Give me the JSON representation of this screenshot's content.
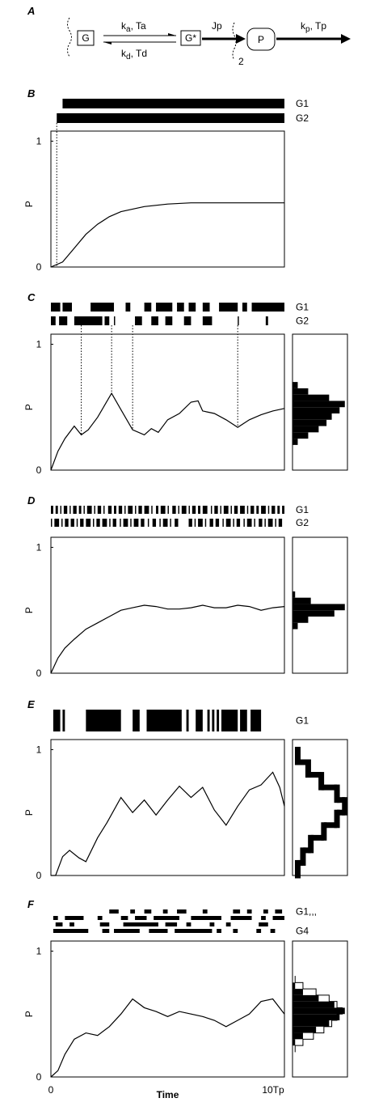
{
  "diagram": {
    "label": "A",
    "gene": "G",
    "active_gene": "G*",
    "product": "P",
    "flux": "Jp",
    "copies": "2",
    "activation": {
      "symbol": "k",
      "sub": "a",
      "time": ", Ta"
    },
    "deactivation": {
      "symbol": "k",
      "sub": "d",
      "time": ", Td"
    },
    "decay": {
      "symbol": "k",
      "sub": "p",
      "time": ", Tp"
    }
  },
  "chart_data": [
    {
      "type": "line",
      "panel_label": "B",
      "color": "#000000",
      "ylabel": "P",
      "xlim": [
        0,
        10
      ],
      "ylim": [
        0,
        1.08
      ],
      "yticks": [
        0,
        1
      ],
      "x": [
        0,
        0.5,
        1,
        1.5,
        2,
        2.5,
        3,
        4,
        5,
        6,
        7,
        8,
        9,
        10
      ],
      "values": [
        0,
        0.04,
        0.15,
        0.26,
        0.34,
        0.4,
        0.44,
        0.48,
        0.5,
        0.51,
        0.51,
        0.51,
        0.51,
        0.51
      ],
      "event_lines": [
        0.25
      ],
      "genes": [
        {
          "name": "G1",
          "intervals": [
            [
              0.5,
              10
            ]
          ]
        },
        {
          "name": "G2",
          "intervals": [
            [
              0.25,
              10
            ]
          ]
        }
      ]
    },
    {
      "type": "line",
      "panel_label": "C",
      "color": "#000000",
      "ylabel": "P",
      "xlim": [
        0,
        10
      ],
      "ylim": [
        0,
        1.08
      ],
      "yticks": [
        0,
        1
      ],
      "x": [
        0,
        0.3,
        0.6,
        1.0,
        1.3,
        1.6,
        2.0,
        2.6,
        3.0,
        3.5,
        4.0,
        4.3,
        4.6,
        5.0,
        5.5,
        6.0,
        6.3,
        6.5,
        7.0,
        7.5,
        8.0,
        8.5,
        9.0,
        9.5,
        10
      ],
      "values": [
        0,
        0.15,
        0.25,
        0.35,
        0.28,
        0.32,
        0.42,
        0.61,
        0.48,
        0.32,
        0.28,
        0.33,
        0.3,
        0.4,
        0.45,
        0.54,
        0.55,
        0.47,
        0.45,
        0.4,
        0.34,
        0.4,
        0.44,
        0.47,
        0.49
      ],
      "event_lines": [
        1.3,
        2.6,
        3.5,
        8.0
      ],
      "genes": [
        {
          "name": "G1",
          "intervals": [
            [
              0,
              0.4
            ],
            [
              0.5,
              0.9
            ],
            [
              1.7,
              2.7
            ],
            [
              3.2,
              3.4
            ],
            [
              4.0,
              4.3
            ],
            [
              4.5,
              5.2
            ],
            [
              5.4,
              5.7
            ],
            [
              5.9,
              6.2
            ],
            [
              6.5,
              6.8
            ],
            [
              7.2,
              8.0
            ],
            [
              8.2,
              8.4
            ],
            [
              8.6,
              10
            ]
          ]
        },
        {
          "name": "G2",
          "intervals": [
            [
              0,
              0.2
            ],
            [
              0.35,
              0.7
            ],
            [
              1.0,
              2.2
            ],
            [
              2.3,
              2.5
            ],
            [
              2.7,
              2.75
            ],
            [
              3.6,
              3.9
            ],
            [
              4.3,
              4.6
            ],
            [
              4.9,
              5.2
            ],
            [
              5.7,
              6.0
            ],
            [
              6.5,
              6.9
            ],
            [
              8.0,
              8.05
            ],
            [
              9.2,
              9.3
            ]
          ]
        }
      ],
      "histogram": {
        "xlim": [
          0,
          1.05
        ],
        "bins": [
          0.2,
          0.25,
          0.3,
          0.35,
          0.4,
          0.45,
          0.5,
          0.55,
          0.6,
          0.65,
          0.7
        ],
        "series": [
          {
            "style": "filled",
            "color": "#000000",
            "values": [
              0.1,
              0.3,
              0.5,
              0.65,
              0.75,
              0.9,
              1,
              0.7,
              0.3,
              0.1
            ]
          }
        ]
      }
    },
    {
      "type": "line",
      "panel_label": "D",
      "color": "#000000",
      "ylabel": "P",
      "xlim": [
        0,
        10
      ],
      "ylim": [
        0,
        1.08
      ],
      "yticks": [
        0,
        1
      ],
      "x": [
        0,
        0.3,
        0.6,
        1,
        1.5,
        2,
        2.5,
        3,
        3.5,
        4,
        4.5,
        5,
        5.5,
        6,
        6.5,
        7,
        7.5,
        8,
        8.5,
        9,
        9.5,
        10
      ],
      "values": [
        0,
        0.12,
        0.2,
        0.27,
        0.35,
        0.4,
        0.45,
        0.5,
        0.52,
        0.54,
        0.53,
        0.51,
        0.51,
        0.52,
        0.54,
        0.52,
        0.52,
        0.54,
        0.53,
        0.5,
        0.52,
        0.53
      ],
      "genes": [
        {
          "name": "G1",
          "intervals": [
            [
              0,
              0.1
            ],
            [
              0.2,
              0.3
            ],
            [
              0.4,
              0.45
            ],
            [
              0.55,
              0.7
            ],
            [
              0.8,
              0.85
            ],
            [
              0.95,
              1.1
            ],
            [
              1.2,
              1.3
            ],
            [
              1.4,
              1.45
            ],
            [
              1.55,
              1.75
            ],
            [
              1.85,
              1.9
            ],
            [
              2.0,
              2.15
            ],
            [
              2.25,
              2.3
            ],
            [
              2.45,
              2.6
            ],
            [
              2.7,
              2.8
            ],
            [
              2.9,
              3.05
            ],
            [
              3.15,
              3.2
            ],
            [
              3.3,
              3.5
            ],
            [
              3.6,
              3.65
            ],
            [
              3.75,
              3.9
            ],
            [
              4.0,
              4.2
            ],
            [
              4.3,
              4.35
            ],
            [
              4.5,
              4.6
            ],
            [
              4.7,
              4.9
            ],
            [
              5.0,
              5.05
            ],
            [
              5.2,
              5.35
            ],
            [
              5.45,
              5.5
            ],
            [
              5.6,
              5.8
            ],
            [
              5.9,
              5.95
            ],
            [
              6.05,
              6.2
            ],
            [
              6.3,
              6.4
            ],
            [
              6.5,
              6.7
            ],
            [
              6.85,
              6.9
            ],
            [
              7.0,
              7.15
            ],
            [
              7.25,
              7.3
            ],
            [
              7.4,
              7.6
            ],
            [
              7.7,
              7.75
            ],
            [
              7.85,
              8.0
            ],
            [
              8.1,
              8.3
            ],
            [
              8.4,
              8.45
            ],
            [
              8.55,
              8.7
            ],
            [
              8.8,
              8.9
            ],
            [
              9.0,
              9.2
            ],
            [
              9.3,
              9.35
            ],
            [
              9.45,
              9.6
            ],
            [
              9.7,
              9.8
            ],
            [
              9.9,
              10
            ]
          ]
        },
        {
          "name": "G2",
          "intervals": [
            [
              0,
              0.05
            ],
            [
              0.15,
              0.35
            ],
            [
              0.45,
              0.5
            ],
            [
              0.6,
              0.75
            ],
            [
              0.85,
              1.0
            ],
            [
              1.1,
              1.15
            ],
            [
              1.25,
              1.4
            ],
            [
              1.5,
              1.7
            ],
            [
              1.8,
              1.85
            ],
            [
              1.95,
              2.1
            ],
            [
              2.2,
              2.4
            ],
            [
              2.5,
              2.55
            ],
            [
              2.65,
              2.8
            ],
            [
              2.95,
              3.0
            ],
            [
              3.1,
              3.3
            ],
            [
              3.4,
              3.45
            ],
            [
              3.55,
              3.75
            ],
            [
              3.85,
              4.0
            ],
            [
              4.15,
              4.2
            ],
            [
              4.35,
              4.5
            ],
            [
              4.65,
              4.7
            ],
            [
              4.8,
              5.0
            ],
            [
              5.1,
              5.15
            ],
            [
              5.3,
              5.45
            ],
            [
              5.9,
              6.05
            ],
            [
              6.15,
              6.2
            ],
            [
              6.3,
              6.5
            ],
            [
              6.6,
              6.65
            ],
            [
              6.8,
              6.95
            ],
            [
              7.05,
              7.2
            ],
            [
              7.35,
              7.4
            ],
            [
              7.5,
              7.7
            ],
            [
              7.8,
              7.85
            ],
            [
              7.95,
              8.1
            ],
            [
              8.25,
              8.3
            ],
            [
              8.4,
              8.6
            ],
            [
              8.7,
              8.75
            ],
            [
              8.9,
              9.05
            ],
            [
              9.15,
              9.2
            ],
            [
              9.3,
              9.5
            ],
            [
              9.6,
              9.65
            ],
            [
              9.75,
              9.9
            ]
          ]
        }
      ],
      "histogram": {
        "xlim": [
          0,
          1.05
        ],
        "bins": [
          0.35,
          0.4,
          0.45,
          0.5,
          0.55,
          0.6,
          0.65
        ],
        "series": [
          {
            "style": "filled",
            "color": "#000000",
            "values": [
              0.1,
              0.3,
              0.8,
              1.0,
              0.35,
              0.05
            ]
          }
        ]
      }
    },
    {
      "type": "line",
      "panel_label": "E",
      "color": "#000000",
      "ylabel": "P",
      "xlim": [
        0,
        10
      ],
      "ylim": [
        0,
        1.08
      ],
      "yticks": [
        0,
        1
      ],
      "x": [
        0,
        0.2,
        0.5,
        0.8,
        1.2,
        1.5,
        2.0,
        2.4,
        3.0,
        3.5,
        4.0,
        4.5,
        5.0,
        5.5,
        6.0,
        6.5,
        7.0,
        7.5,
        8.0,
        8.5,
        9.0,
        9.5,
        9.8,
        10
      ],
      "values": [
        0,
        0,
        0.15,
        0.2,
        0.14,
        0.11,
        0.3,
        0.42,
        0.62,
        0.5,
        0.6,
        0.48,
        0.6,
        0.71,
        0.62,
        0.7,
        0.52,
        0.4,
        0.55,
        0.68,
        0.72,
        0.82,
        0.7,
        0.55
      ],
      "genes": [
        {
          "name": "G1",
          "intervals": [
            [
              0.1,
              0.4
            ],
            [
              0.5,
              0.6
            ],
            [
              1.5,
              3.0
            ],
            [
              3.5,
              3.8
            ],
            [
              4.1,
              5.6
            ],
            [
              5.8,
              5.9
            ],
            [
              6.2,
              6.5
            ],
            [
              6.7,
              6.8
            ],
            [
              6.9,
              7.0
            ],
            [
              7.1,
              7.2
            ],
            [
              7.3,
              8.0
            ],
            [
              8.1,
              8.4
            ],
            [
              8.55,
              9.0
            ]
          ]
        }
      ],
      "histogram": {
        "xlim": [
          0,
          1.05
        ],
        "bins": [
          0,
          0.1,
          0.2,
          0.3,
          0.4,
          0.5,
          0.6,
          0.7,
          0.8,
          0.9,
          1.0
        ],
        "series": [
          {
            "style": "thick",
            "color": "#000000",
            "values": [
              0.1,
              0.2,
              0.35,
              0.6,
              0.85,
              1.0,
              0.85,
              0.55,
              0.3,
              0.1
            ]
          }
        ]
      }
    },
    {
      "type": "line",
      "panel_label": "F",
      "color": "#000000",
      "ylabel": "P",
      "xlabel": "Time",
      "xlim": [
        0,
        10
      ],
      "ylim": [
        0,
        1.08
      ],
      "yticks": [
        0,
        1
      ],
      "xticks": [
        0,
        {
          "value": 10,
          "label": "10Tp"
        }
      ],
      "x": [
        0,
        0.3,
        0.6,
        1,
        1.5,
        2,
        2.5,
        3,
        3.5,
        4,
        4.5,
        5,
        5.5,
        6,
        6.5,
        7,
        7.5,
        8,
        8.5,
        9,
        9.5,
        10
      ],
      "values": [
        0,
        0.05,
        0.18,
        0.3,
        0.35,
        0.33,
        0.4,
        0.5,
        0.62,
        0.55,
        0.52,
        0.48,
        0.52,
        0.5,
        0.48,
        0.45,
        0.4,
        0.45,
        0.5,
        0.6,
        0.62,
        0.5
      ],
      "genes": [
        {
          "name": "G1,,,",
          "intervals": [
            [
              2.5,
              2.9
            ],
            [
              3.4,
              3.6
            ],
            [
              4.0,
              4.3
            ],
            [
              4.8,
              5.0
            ],
            [
              5.4,
              5.8
            ],
            [
              6.5,
              6.7
            ],
            [
              7.8,
              8.1
            ],
            [
              8.4,
              8.6
            ],
            [
              9.1,
              9.3
            ],
            [
              9.6,
              9.9
            ]
          ]
        },
        {
          "name": null,
          "intervals": [
            [
              0.1,
              0.3
            ],
            [
              0.6,
              1.4
            ],
            [
              2.0,
              2.2
            ],
            [
              3.0,
              3.3
            ],
            [
              3.6,
              4.1
            ],
            [
              4.4,
              5.5
            ],
            [
              6.0,
              7.3
            ],
            [
              7.7,
              8.6
            ],
            [
              9.0,
              9.2
            ],
            [
              9.5,
              10
            ]
          ]
        },
        {
          "name": null,
          "intervals": [
            [
              0.2,
              0.5
            ],
            [
              0.8,
              1.0
            ],
            [
              2.1,
              2.5
            ],
            [
              3.1,
              4.6
            ],
            [
              4.9,
              5.4
            ],
            [
              5.8,
              6.0
            ],
            [
              6.8,
              7.0
            ],
            [
              7.5,
              7.7
            ],
            [
              8.9,
              9.3
            ]
          ]
        },
        {
          "name": "G4",
          "intervals": [
            [
              0.1,
              1.6
            ],
            [
              2.2,
              2.5
            ],
            [
              2.7,
              3.8
            ],
            [
              4.2,
              5.0
            ],
            [
              5.3,
              6.9
            ],
            [
              7.1,
              7.3
            ],
            [
              7.8,
              8.0
            ],
            [
              8.8,
              9.0
            ],
            [
              9.4,
              9.6
            ]
          ]
        }
      ],
      "histogram": {
        "xlim": [
          0,
          1.05
        ],
        "bins": [
          0.2,
          0.25,
          0.3,
          0.35,
          0.4,
          0.45,
          0.5,
          0.55,
          0.6,
          0.65,
          0.7,
          0.75,
          0.8
        ],
        "series": [
          {
            "style": "outline",
            "color": "#000000",
            "values": [
              0.05,
              0.2,
              0.4,
              0.6,
              0.75,
              0.85,
              0.95,
              0.85,
              0.7,
              0.45,
              0.2,
              0.05
            ]
          },
          {
            "style": "filled",
            "color": "#000000",
            "values": [
              0,
              0.05,
              0.2,
              0.45,
              0.7,
              0.9,
              1.0,
              0.8,
              0.5,
              0.2,
              0.05,
              0
            ]
          }
        ]
      }
    }
  ]
}
